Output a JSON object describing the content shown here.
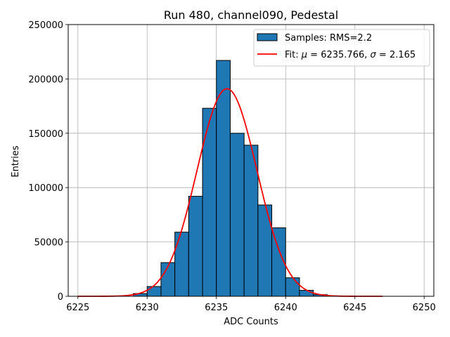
{
  "chart_data": {
    "type": "bar",
    "title": "Run 480, channel090, Pedestal",
    "xlabel": "ADC Counts",
    "ylabel": "Entries",
    "xlim": [
      6224.3,
      6250.7
    ],
    "ylim": [
      0,
      250000
    ],
    "xticks": [
      "6225",
      "6230",
      "6235",
      "6240",
      "6245",
      "6250"
    ],
    "yticks": [
      "0",
      "50000",
      "100000",
      "150000",
      "200000",
      "250000"
    ],
    "grid": true,
    "legend_position": "top-right",
    "colors": {
      "bar_fill": "#1f77b4",
      "bar_edge": "#000000",
      "fit_line": "#ff0000",
      "grid": "#b0b0b0"
    },
    "histogram": {
      "name": "Samples: RMS=2.2",
      "bin_edges": [
        6229,
        6230,
        6231,
        6232,
        6233,
        6234,
        6235,
        6236,
        6237,
        6238,
        6239,
        6240,
        6241,
        6242,
        6243
      ],
      "counts": [
        2500,
        9000,
        31000,
        59000,
        92000,
        173000,
        217000,
        150000,
        139000,
        84000,
        63000,
        17000,
        5500,
        1500
      ]
    },
    "fit": {
      "name_prefix": "Fit: ",
      "mu_label": "μ",
      "mu_value": "6235.766",
      "sigma_label": "σ",
      "sigma_value": "2.165",
      "mu": 6235.766,
      "sigma": 2.165,
      "amplitude": 191000,
      "x_range": [
        6225,
        6247
      ]
    }
  }
}
